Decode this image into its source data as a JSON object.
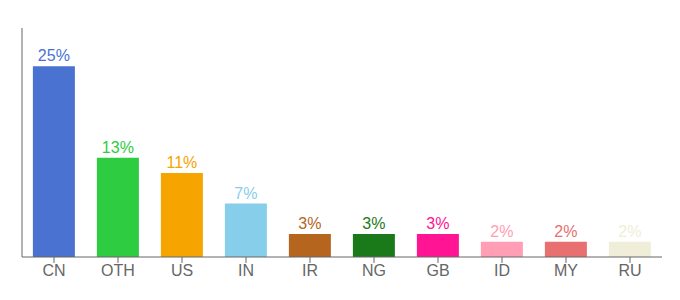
{
  "chart_data": {
    "type": "bar",
    "categories": [
      "CN",
      "OTH",
      "US",
      "IN",
      "IR",
      "NG",
      "GB",
      "ID",
      "MY",
      "RU"
    ],
    "values": [
      25,
      13,
      11,
      7,
      3,
      3,
      3,
      2,
      2,
      2
    ],
    "value_labels": [
      "25%",
      "13%",
      "11%",
      "7%",
      "3%",
      "3%",
      "3%",
      "2%",
      "2%",
      "2%"
    ],
    "colors": [
      "#4a72d1",
      "#2ecc40",
      "#f5a400",
      "#87ceeb",
      "#b5651d",
      "#1a7a1a",
      "#ff1493",
      "#ff9eb5",
      "#e87070",
      "#f0eed8"
    ],
    "ylim": [
      0,
      30
    ],
    "data_labels": true,
    "tick_labels": "x",
    "grid": false
  }
}
